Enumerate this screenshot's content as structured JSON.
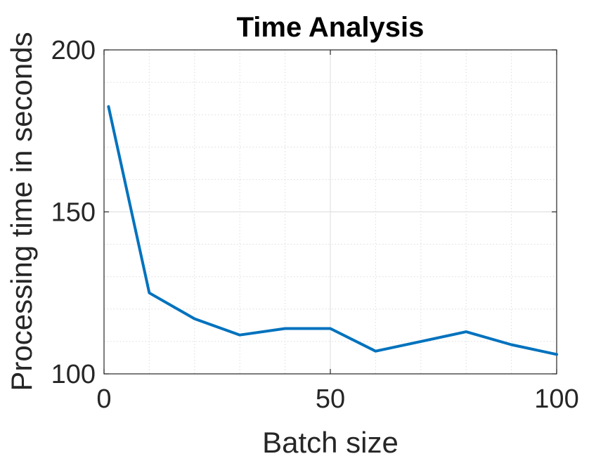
{
  "chart_data": {
    "type": "line",
    "title": "Time Analysis",
    "xlabel": "Batch size",
    "ylabel": "Processing time in seconds",
    "xlim": [
      0,
      100
    ],
    "ylim": [
      100,
      200
    ],
    "xticks": [
      "0",
      "50",
      "100"
    ],
    "xtick_values": [
      0,
      50,
      100
    ],
    "yticks": [
      "100",
      "150",
      "200"
    ],
    "ytick_values": [
      100,
      150,
      200
    ],
    "grid": true,
    "minor_grid": true,
    "series": [
      {
        "color": "#0072bd",
        "x": [
          1,
          10,
          20,
          30,
          40,
          50,
          60,
          70,
          80,
          90,
          100
        ],
        "y": [
          182.5,
          125,
          117,
          112,
          114,
          114,
          107,
          110,
          113,
          109,
          106
        ]
      }
    ]
  }
}
